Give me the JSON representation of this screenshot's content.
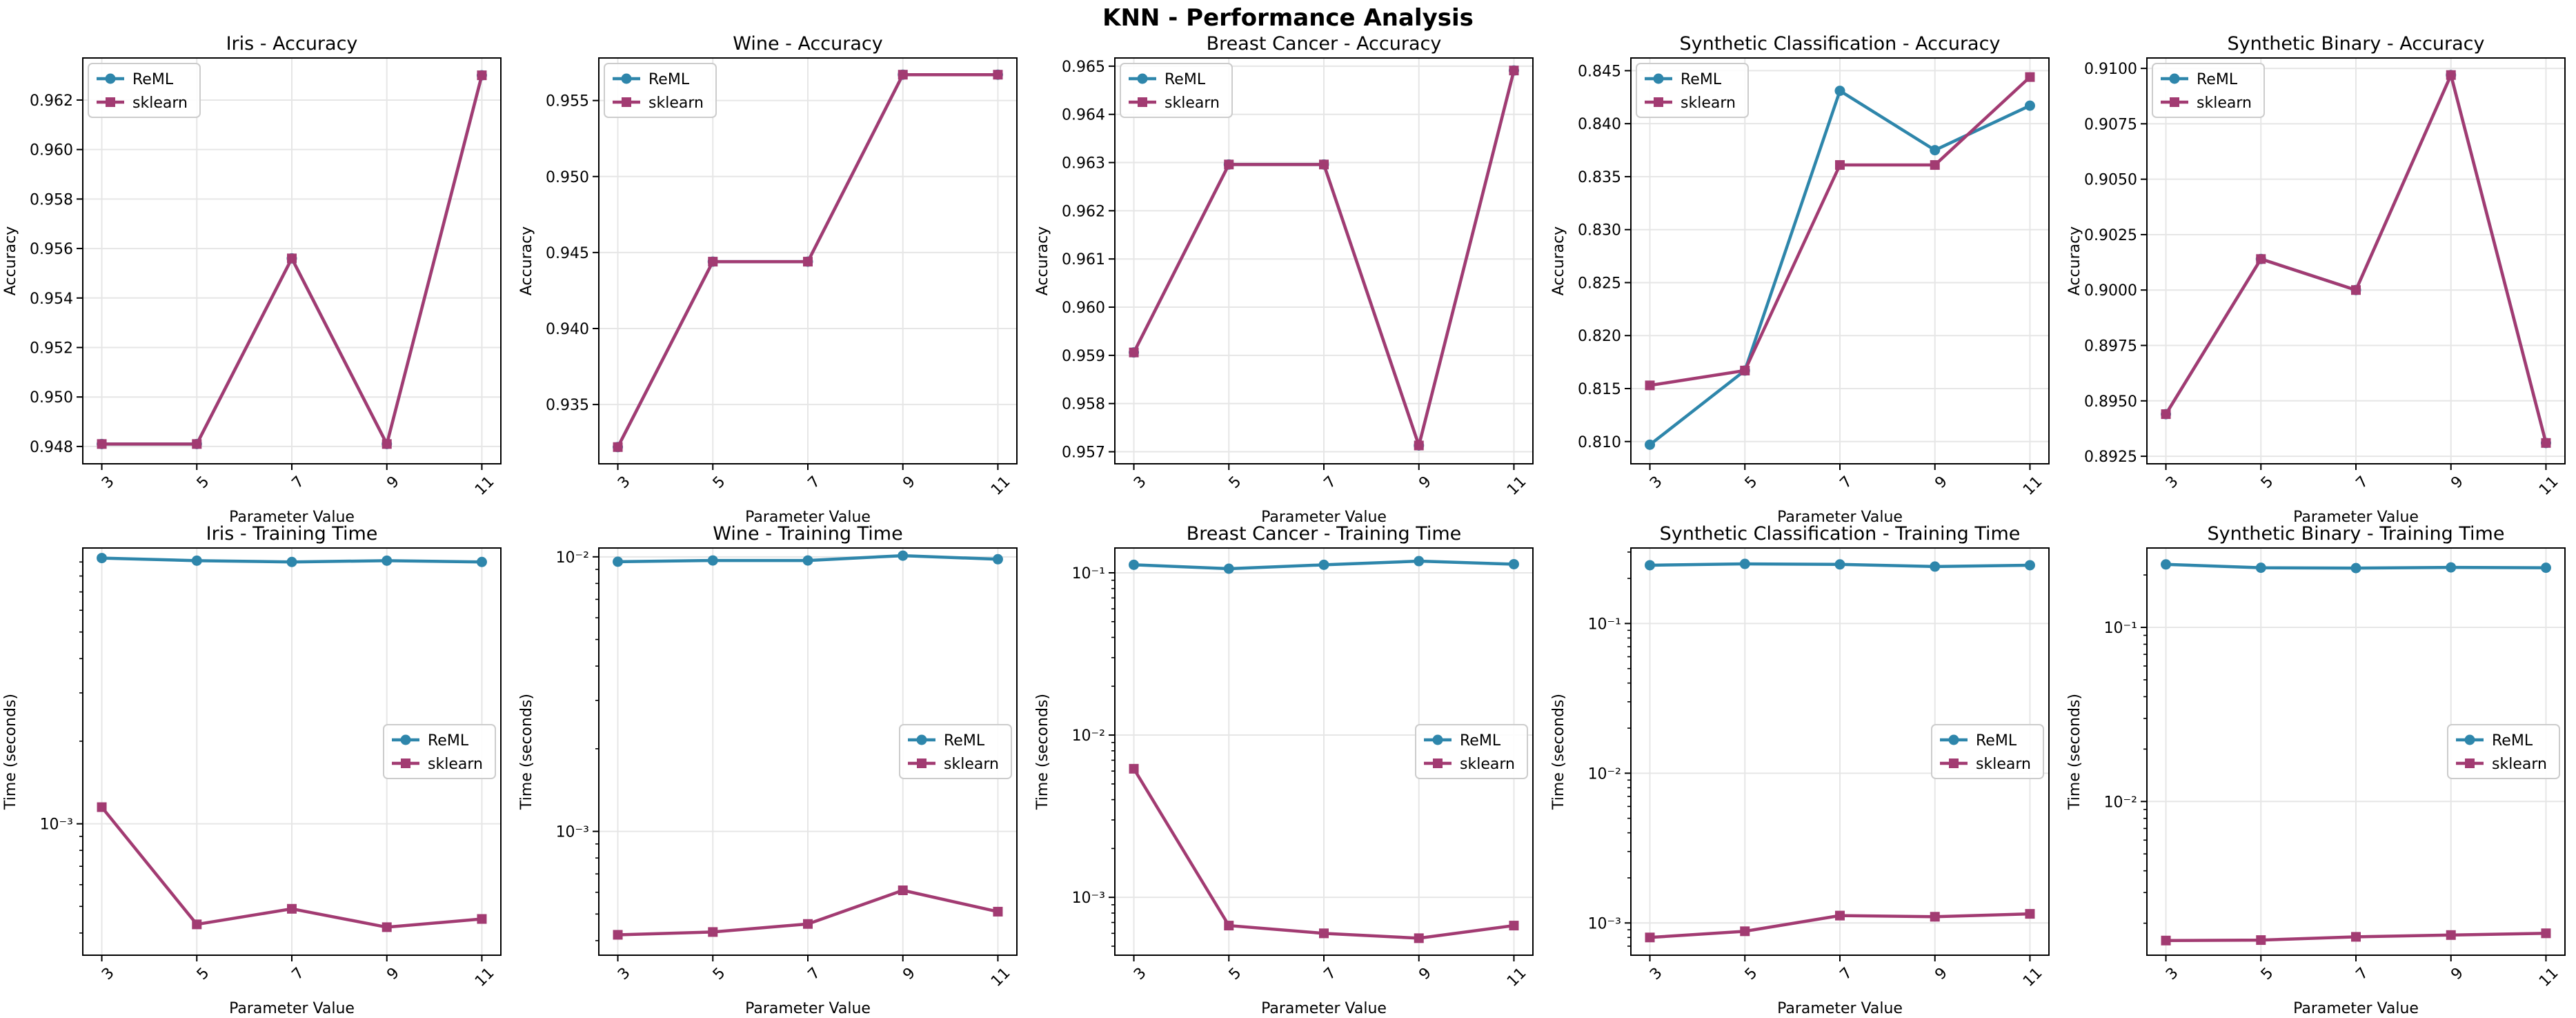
{
  "suptitle": "KNN - Performance Analysis",
  "colors": {
    "ReML": "#2E86AB",
    "sklearn": "#A23B72",
    "grid": "#e6e6e6"
  },
  "chart_data": [
    {
      "type": "line",
      "title": "Iris - Accuracy",
      "xlabel": "Parameter Value",
      "ylabel": "Accuracy",
      "categories": [
        "3",
        "5",
        "7",
        "9",
        "11"
      ],
      "yscale": "linear",
      "ylim": [
        0.9473,
        0.9637
      ],
      "yticks": [
        0.948,
        0.95,
        0.952,
        0.954,
        0.956,
        0.958,
        0.96,
        0.962
      ],
      "yticklabels": [
        "0.948",
        "0.950",
        "0.952",
        "0.954",
        "0.956",
        "0.958",
        "0.960",
        "0.962"
      ],
      "legend": "upper left",
      "series": [
        {
          "name": "ReML",
          "marker": "circle",
          "values": [
            0.9481,
            0.9481,
            0.9556,
            0.9481,
            0.963
          ]
        },
        {
          "name": "sklearn",
          "marker": "square",
          "values": [
            0.9481,
            0.9481,
            0.9556,
            0.9481,
            0.963
          ]
        }
      ]
    },
    {
      "type": "line",
      "title": "Wine - Accuracy",
      "xlabel": "Parameter Value",
      "ylabel": "Accuracy",
      "categories": [
        "3",
        "5",
        "7",
        "9",
        "11"
      ],
      "yscale": "linear",
      "ylim": [
        0.9311,
        0.9578
      ],
      "yticks": [
        0.935,
        0.94,
        0.945,
        0.95,
        0.955
      ],
      "yticklabels": [
        "0.935",
        "0.940",
        "0.945",
        "0.950",
        "0.955"
      ],
      "legend": "upper left",
      "series": [
        {
          "name": "ReML",
          "marker": "circle",
          "values": [
            0.9322,
            0.9444,
            0.9444,
            0.9567,
            0.9567
          ]
        },
        {
          "name": "sklearn",
          "marker": "square",
          "values": [
            0.9322,
            0.9444,
            0.9444,
            0.9567,
            0.9567
          ]
        }
      ]
    },
    {
      "type": "line",
      "title": "Breast Cancer - Accuracy",
      "xlabel": "Parameter Value",
      "ylabel": "Accuracy",
      "categories": [
        "3",
        "5",
        "7",
        "9",
        "11"
      ],
      "yscale": "linear",
      "ylim": [
        0.95675,
        0.96517
      ],
      "yticks": [
        0.957,
        0.958,
        0.959,
        0.96,
        0.961,
        0.962,
        0.963,
        0.964,
        0.965
      ],
      "yticklabels": [
        "0.957",
        "0.958",
        "0.959",
        "0.960",
        "0.961",
        "0.962",
        "0.963",
        "0.964",
        "0.965"
      ],
      "legend": "upper left",
      "series": [
        {
          "name": "ReML",
          "marker": "circle",
          "values": [
            0.95906,
            0.96296,
            0.96296,
            0.95713,
            0.96491
          ]
        },
        {
          "name": "sklearn",
          "marker": "square",
          "values": [
            0.95906,
            0.96296,
            0.96296,
            0.95713,
            0.96491
          ]
        }
      ]
    },
    {
      "type": "line",
      "title": "Synthetic Classification - Accuracy",
      "xlabel": "Parameter Value",
      "ylabel": "Accuracy",
      "categories": [
        "3",
        "5",
        "7",
        "9",
        "11"
      ],
      "yscale": "linear",
      "ylim": [
        0.8079,
        0.8462
      ],
      "yticks": [
        0.81,
        0.815,
        0.82,
        0.825,
        0.83,
        0.835,
        0.84,
        0.845
      ],
      "yticklabels": [
        "0.810",
        "0.815",
        "0.820",
        "0.825",
        "0.830",
        "0.835",
        "0.840",
        "0.845"
      ],
      "legend": "upper left",
      "series": [
        {
          "name": "ReML",
          "marker": "circle",
          "values": [
            0.8097,
            0.8167,
            0.8431,
            0.8375,
            0.8417
          ]
        },
        {
          "name": "sklearn",
          "marker": "square",
          "values": [
            0.8153,
            0.8167,
            0.8361,
            0.8361,
            0.8444
          ]
        }
      ]
    },
    {
      "type": "line",
      "title": "Synthetic Binary - Accuracy",
      "xlabel": "Parameter Value",
      "ylabel": "Accuracy",
      "categories": [
        "3",
        "5",
        "7",
        "9",
        "11"
      ],
      "yscale": "linear",
      "ylim": [
        0.89216,
        0.91047
      ],
      "yticks": [
        0.8925,
        0.895,
        0.8975,
        0.9,
        0.9025,
        0.905,
        0.9075,
        0.91
      ],
      "yticklabels": [
        "0.8925",
        "0.8950",
        "0.8975",
        "0.9000",
        "0.9025",
        "0.9050",
        "0.9075",
        "0.9100"
      ],
      "legend": "upper left",
      "series": [
        {
          "name": "ReML",
          "marker": "circle",
          "values": [
            0.8944,
            0.9014,
            0.9,
            0.9097,
            0.8931
          ]
        },
        {
          "name": "sklearn",
          "marker": "square",
          "values": [
            0.8944,
            0.9014,
            0.9,
            0.9097,
            0.8931
          ]
        }
      ]
    },
    {
      "type": "line",
      "title": "Iris - Training Time",
      "xlabel": "Parameter Value",
      "ylabel": "Time (seconds)",
      "categories": [
        "3",
        "5",
        "7",
        "9",
        "11"
      ],
      "yscale": "log",
      "ylim": [
        0.000332,
        0.01012
      ],
      "yticks": [
        0.001
      ],
      "yticklabels": [
        "10⁻³"
      ],
      "legend": "center right",
      "series": [
        {
          "name": "ReML",
          "marker": "circle",
          "values": [
            0.0093,
            0.0091,
            0.009,
            0.0091,
            0.009
          ]
        },
        {
          "name": "sklearn",
          "marker": "square",
          "values": [
            0.00115,
            0.00043,
            0.00049,
            0.00042,
            0.00045
          ]
        }
      ]
    },
    {
      "type": "line",
      "title": "Wine - Training Time",
      "xlabel": "Parameter Value",
      "ylabel": "Time (seconds)",
      "categories": [
        "3",
        "5",
        "7",
        "9",
        "11"
      ],
      "yscale": "log",
      "ylim": [
        0.000354,
        0.01077
      ],
      "yticks": [
        0.001,
        0.01
      ],
      "yticklabels": [
        "10⁻³",
        "10⁻²"
      ],
      "legend": "center right",
      "series": [
        {
          "name": "ReML",
          "marker": "circle",
          "values": [
            0.0096,
            0.0097,
            0.0097,
            0.0101,
            0.0098
          ]
        },
        {
          "name": "sklearn",
          "marker": "square",
          "values": [
            0.00042,
            0.00043,
            0.00046,
            0.00061,
            0.00051
          ]
        }
      ]
    },
    {
      "type": "line",
      "title": "Breast Cancer - Training Time",
      "xlabel": "Parameter Value",
      "ylabel": "Time (seconds)",
      "categories": [
        "3",
        "5",
        "7",
        "9",
        "11"
      ],
      "yscale": "log",
      "ylim": [
        0.00044,
        0.1422
      ],
      "yticks": [
        0.001,
        0.01,
        0.1
      ],
      "yticklabels": [
        "10⁻³",
        "10⁻²",
        "10⁻¹"
      ],
      "legend": "center right",
      "series": [
        {
          "name": "ReML",
          "marker": "circle",
          "values": [
            0.112,
            0.106,
            0.112,
            0.118,
            0.113
          ]
        },
        {
          "name": "sklearn",
          "marker": "square",
          "values": [
            0.0062,
            0.00067,
            0.0006,
            0.00056,
            0.00067
          ]
        }
      ]
    },
    {
      "type": "line",
      "title": "Synthetic Classification - Training Time",
      "xlabel": "Parameter Value",
      "ylabel": "Time (seconds)",
      "categories": [
        "3",
        "5",
        "7",
        "9",
        "11"
      ],
      "yscale": "log",
      "ylim": [
        0.000609,
        0.3193
      ],
      "yticks": [
        0.001,
        0.01,
        0.1
      ],
      "yticklabels": [
        "10⁻³",
        "10⁻²",
        "10⁻¹"
      ],
      "legend": "center right",
      "series": [
        {
          "name": "ReML",
          "marker": "circle",
          "values": [
            0.245,
            0.25,
            0.248,
            0.24,
            0.245
          ]
        },
        {
          "name": "sklearn",
          "marker": "square",
          "values": [
            0.0008,
            0.00088,
            0.00112,
            0.0011,
            0.00115
          ]
        }
      ]
    },
    {
      "type": "line",
      "title": "Synthetic Binary - Training Time",
      "xlabel": "Parameter Value",
      "ylabel": "Time (seconds)",
      "categories": [
        "3",
        "5",
        "7",
        "9",
        "11"
      ],
      "yscale": "log",
      "ylim": [
        0.00131,
        0.2857
      ],
      "yticks": [
        0.01,
        0.1
      ],
      "yticklabels": [
        "10⁻²",
        "10⁻¹"
      ],
      "legend": "center right",
      "series": [
        {
          "name": "ReML",
          "marker": "circle",
          "values": [
            0.23,
            0.22,
            0.219,
            0.221,
            0.22
          ]
        },
        {
          "name": "sklearn",
          "marker": "square",
          "values": [
            0.00159,
            0.0016,
            0.00167,
            0.00171,
            0.00175
          ]
        }
      ]
    }
  ]
}
